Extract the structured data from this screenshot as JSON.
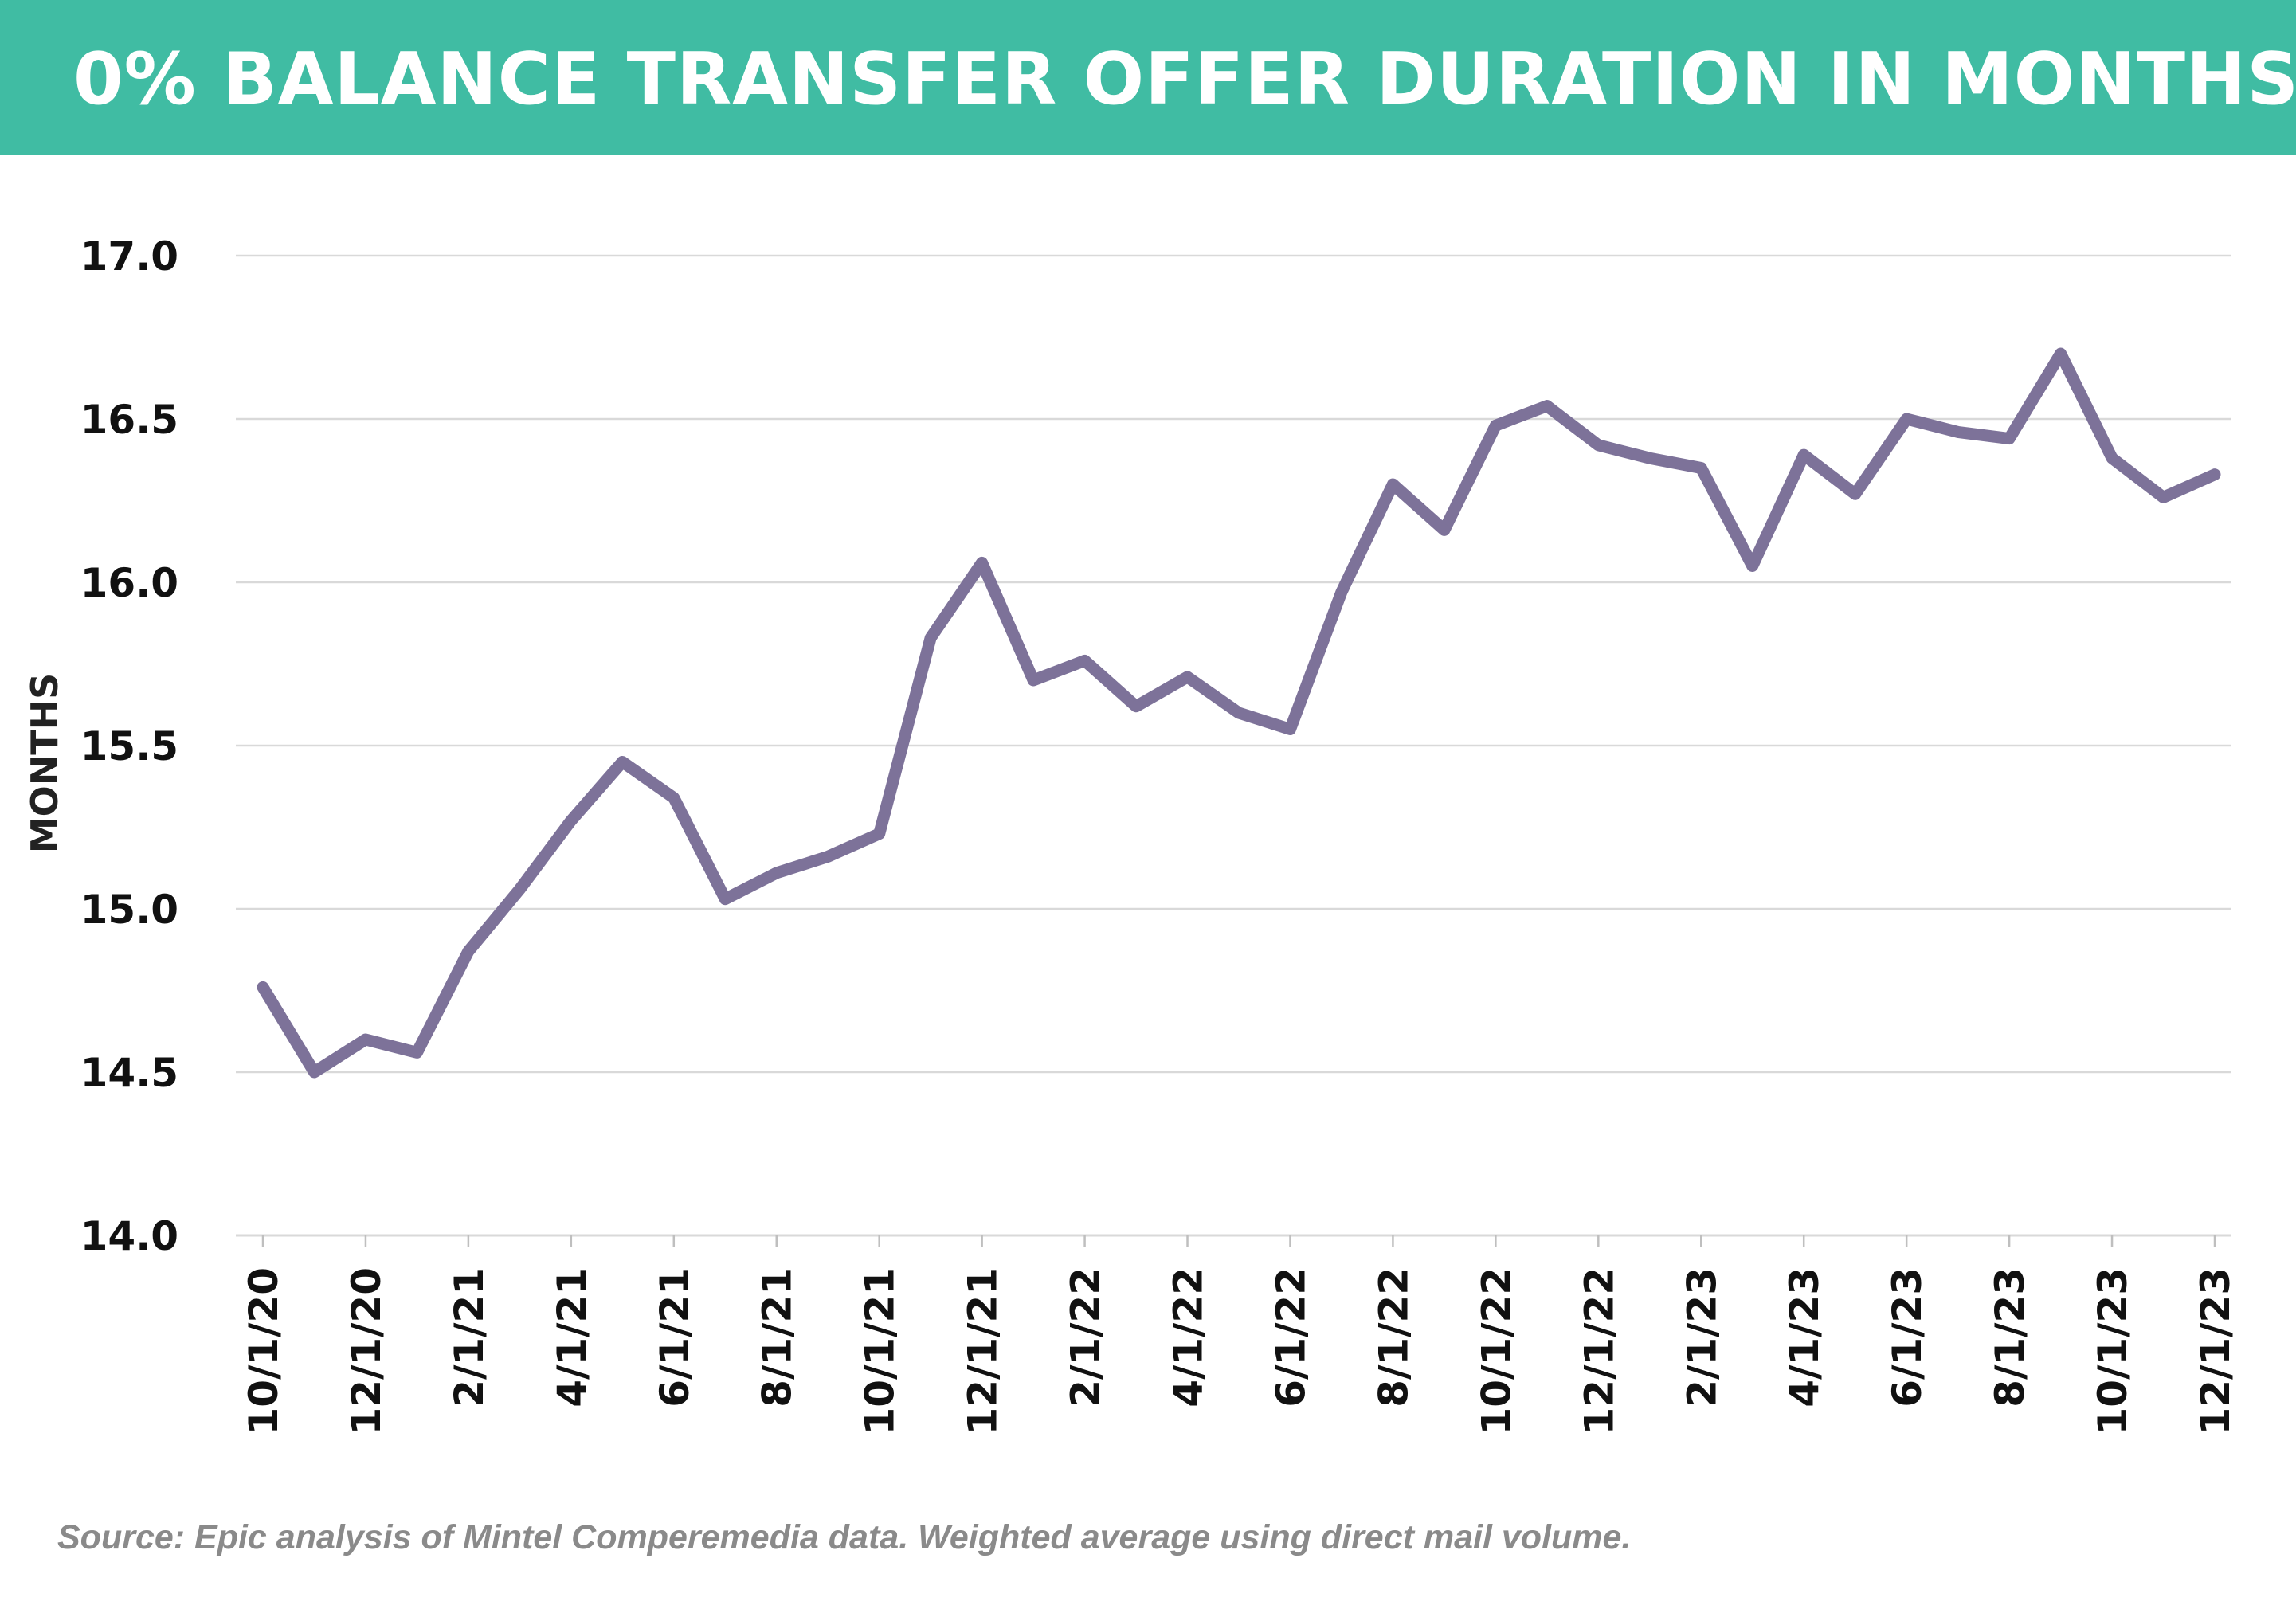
{
  "header": {
    "title": "0% BALANCE TRANSFER OFFER DURATION IN MONTHS"
  },
  "footer": {
    "source": "Source: Epic analysis of Mintel Comperemedia data. Weighted average using direct mail volume."
  },
  "colors": {
    "header_bg": "#40bca3",
    "line": "#7d7299",
    "grid": "#d9d9d9",
    "source_text": "#8a8a8a"
  },
  "chart_data": {
    "type": "line",
    "title": "0% BALANCE TRANSFER OFFER DURATION IN MONTHS",
    "xlabel": "",
    "ylabel": "MONTHS",
    "ylim": [
      14.0,
      17.0
    ],
    "yticks": [
      "14.0",
      "14.5",
      "15.0",
      "15.5",
      "16.0",
      "16.5",
      "17.0"
    ],
    "grid": "horizontal",
    "legend": "none",
    "x": [
      "10/1/20",
      "11/1/20",
      "12/1/20",
      "1/1/21",
      "2/1/21",
      "3/1/21",
      "4/1/21",
      "5/1/21",
      "6/1/21",
      "7/1/21",
      "8/1/21",
      "9/1/21",
      "10/1/21",
      "11/1/21",
      "12/1/21",
      "1/1/22",
      "2/1/22",
      "3/1/22",
      "4/1/22",
      "5/1/22",
      "6/1/22",
      "7/1/22",
      "8/1/22",
      "9/1/22",
      "10/1/22",
      "11/1/22",
      "12/1/22",
      "1/1/23",
      "2/1/23",
      "3/1/23",
      "4/1/23",
      "5/1/23",
      "6/1/23",
      "7/1/23",
      "8/1/23",
      "9/1/23",
      "10/1/23",
      "11/1/23",
      "12/1/23"
    ],
    "xtick_labels": [
      "10/1/20",
      "12/1/20",
      "2/1/21",
      "4/1/21",
      "6/1/21",
      "8/1/21",
      "10/1/21",
      "12/1/21",
      "2/1/22",
      "4/1/22",
      "6/1/22",
      "8/1/22",
      "10/1/22",
      "12/1/22",
      "2/1/23",
      "4/1/23",
      "6/1/23",
      "8/1/23",
      "10/1/23",
      "12/1/23"
    ],
    "series": [
      {
        "values": [
          14.76,
          14.5,
          14.6,
          14.56,
          14.87,
          15.06,
          15.27,
          15.45,
          15.34,
          15.03,
          15.11,
          15.16,
          15.23,
          15.83,
          16.06,
          15.7,
          15.76,
          15.62,
          15.71,
          15.6,
          15.55,
          15.97,
          16.3,
          16.16,
          16.48,
          16.54,
          16.42,
          16.38,
          16.35,
          16.05,
          16.39,
          16.27,
          16.5,
          16.46,
          16.44,
          16.7,
          16.38,
          16.26,
          16.33
        ]
      }
    ]
  }
}
